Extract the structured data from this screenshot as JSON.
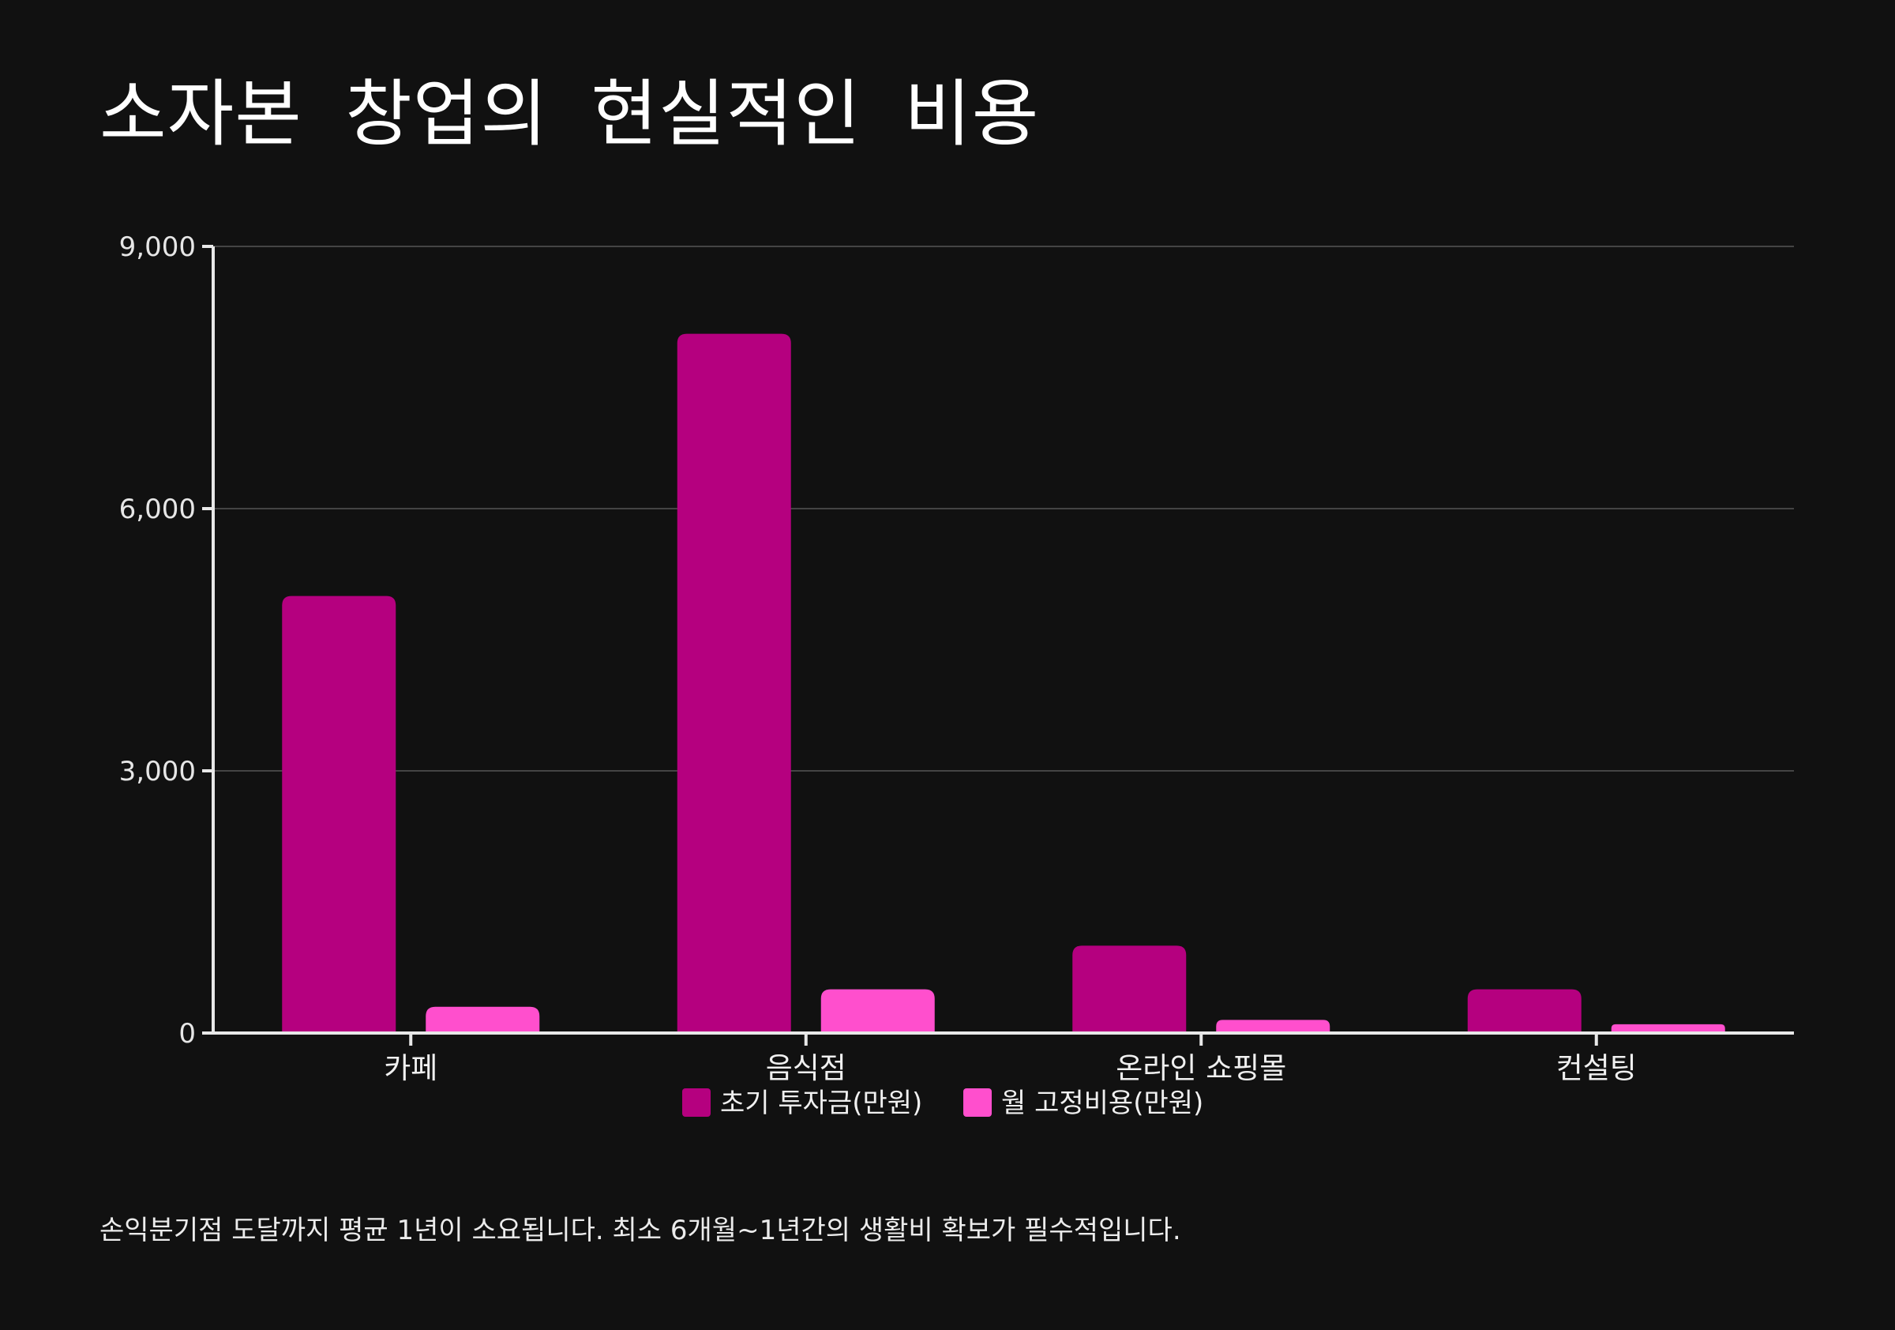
{
  "title": "소자본 창업의 현실적인 비용",
  "footnote": "손익분기점 도달까지 평균 1년이 소요됩니다. 최소 6개월~1년간의 생활비 확보가 필수적입니다.",
  "colors": {
    "background": "#111111",
    "axis": "#e8e8e8",
    "grid": "#444444"
  },
  "chart_data": {
    "type": "bar",
    "categories": [
      "카페",
      "음식점",
      "온라인 쇼핑몰",
      "컨설팅"
    ],
    "series": [
      {
        "name": "초기 투자금(만원)",
        "values": [
          5000,
          8000,
          1000,
          500
        ],
        "color": "#b5007f"
      },
      {
        "name": "월 고정비용(만원)",
        "values": [
          300,
          500,
          150,
          100
        ],
        "color": "#ff4fcd"
      }
    ],
    "yticks": [
      "0",
      "3,000",
      "6,000",
      "9,000"
    ],
    "ytick_values": [
      0,
      3000,
      6000,
      9000
    ],
    "ylim": [
      0,
      9000
    ],
    "grid": true,
    "legend_position": "bottom-center",
    "xlabel": "",
    "ylabel": ""
  }
}
